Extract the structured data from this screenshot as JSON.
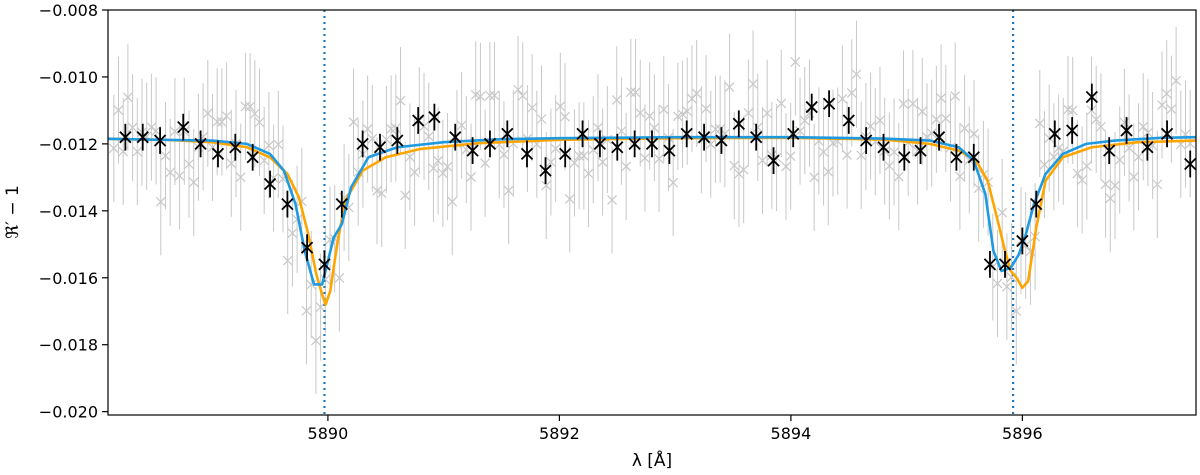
{
  "chart_data": {
    "type": "scatter",
    "title": "",
    "xlabel": "λ [Å]",
    "ylabel": "ℜ′ − 1",
    "xlim": [
      5888.1,
      5897.5
    ],
    "ylim": [
      -0.0201,
      -0.008
    ],
    "xticks": [
      5890,
      5892,
      5894,
      5896
    ],
    "yticks": [
      -0.02,
      -0.018,
      -0.016,
      -0.014,
      -0.012,
      -0.01,
      -0.008
    ],
    "ytick_labels": [
      "−0.020",
      "−0.018",
      "−0.016",
      "−0.014",
      "−0.012",
      "−0.010",
      "−0.008"
    ],
    "grid": false,
    "vlines": [
      5889.97,
      5895.92
    ],
    "colors": {
      "binned": "#000000",
      "raw": "#c8c8c8",
      "model_orange": "#ffa500",
      "model_blue": "#1f9ae0",
      "vline": "#1f77b4"
    },
    "binned_points": {
      "x": [
        5888.25,
        5888.4,
        5888.55,
        5888.75,
        5888.9,
        5889.05,
        5889.2,
        5889.35,
        5889.5,
        5889.65,
        5889.82,
        5889.97,
        5890.12,
        5890.3,
        5890.45,
        5890.6,
        5890.78,
        5890.92,
        5891.1,
        5891.25,
        5891.4,
        5891.55,
        5891.72,
        5891.88,
        5892.05,
        5892.2,
        5892.35,
        5892.5,
        5892.65,
        5892.8,
        5892.95,
        5893.1,
        5893.25,
        5893.4,
        5893.55,
        5893.7,
        5893.85,
        5894.02,
        5894.18,
        5894.33,
        5894.5,
        5894.65,
        5894.8,
        5894.98,
        5895.12,
        5895.28,
        5895.43,
        5895.58,
        5895.72,
        5895.85,
        5896.0,
        5896.12,
        5896.28,
        5896.43,
        5896.6,
        5896.75,
        5896.9,
        5897.08,
        5897.25,
        5897.45
      ],
      "y": [
        -0.0118,
        -0.0118,
        -0.0119,
        -0.0115,
        -0.012,
        -0.0123,
        -0.0121,
        -0.0124,
        -0.0132,
        -0.0138,
        -0.0151,
        -0.0156,
        -0.0138,
        -0.012,
        -0.0121,
        -0.0119,
        -0.0113,
        -0.0112,
        -0.0118,
        -0.0122,
        -0.012,
        -0.0117,
        -0.0123,
        -0.0128,
        -0.0123,
        -0.0117,
        -0.012,
        -0.0121,
        -0.012,
        -0.012,
        -0.0122,
        -0.0117,
        -0.0118,
        -0.0119,
        -0.0114,
        -0.0118,
        -0.0125,
        -0.0117,
        -0.0109,
        -0.0108,
        -0.0113,
        -0.0119,
        -0.0121,
        -0.0124,
        -0.0122,
        -0.0118,
        -0.0124,
        -0.0124,
        -0.0156,
        -0.0156,
        -0.0149,
        -0.0138,
        -0.0117,
        -0.0116,
        -0.0106,
        -0.0122,
        -0.0116,
        -0.0121,
        -0.0117,
        -0.0126
      ],
      "err": [
        0.0004,
        0.0004,
        0.0004,
        0.0004,
        0.0004,
        0.0004,
        0.0004,
        0.0004,
        0.0004,
        0.0004,
        0.0004,
        0.0004,
        0.0004,
        0.0004,
        0.0004,
        0.0004,
        0.0004,
        0.0004,
        0.0004,
        0.0004,
        0.0004,
        0.0004,
        0.0004,
        0.0004,
        0.0004,
        0.0004,
        0.0004,
        0.0004,
        0.0004,
        0.0004,
        0.0004,
        0.0004,
        0.0004,
        0.0004,
        0.0004,
        0.0004,
        0.0004,
        0.0004,
        0.0004,
        0.0004,
        0.0004,
        0.0004,
        0.0004,
        0.0004,
        0.0004,
        0.0004,
        0.0004,
        0.0004,
        0.0004,
        0.0004,
        0.0004,
        0.0004,
        0.0004,
        0.0004,
        0.0004,
        0.0004,
        0.0004,
        0.0004,
        0.0004,
        0.0004
      ]
    },
    "raw_scatter": {
      "x_start": 5888.15,
      "x_end": 5897.45,
      "count": 230,
      "err": 0.0016,
      "noise": 0.0009
    },
    "series": [
      {
        "x": [
          5888.1,
          5888.6,
          5889.0,
          5889.3,
          5889.5,
          5889.65,
          5889.75,
          5889.83,
          5889.9,
          5889.95,
          5889.98,
          5890.02,
          5890.08,
          5890.15,
          5890.3,
          5890.5,
          5890.8,
          5891.3,
          5892.0,
          5893.0,
          5894.0,
          5894.8,
          5895.2,
          5895.45,
          5895.6,
          5895.7,
          5895.78,
          5895.85,
          5895.9,
          5895.95,
          5896.0,
          5896.05,
          5896.12,
          5896.2,
          5896.35,
          5896.6,
          5897.0,
          5897.5
        ],
        "y": [
          -0.01185,
          -0.01188,
          -0.01195,
          -0.0121,
          -0.0124,
          -0.0129,
          -0.0136,
          -0.0147,
          -0.0159,
          -0.0165,
          -0.0168,
          -0.0164,
          -0.015,
          -0.0137,
          -0.0128,
          -0.0124,
          -0.01215,
          -0.01198,
          -0.01188,
          -0.01183,
          -0.01182,
          -0.01187,
          -0.012,
          -0.0122,
          -0.0125,
          -0.0131,
          -0.0142,
          -0.0152,
          -0.0158,
          -0.016,
          -0.0163,
          -0.0161,
          -0.0145,
          -0.0131,
          -0.0124,
          -0.0121,
          -0.01195,
          -0.0119
        ]
      },
      {
        "x": [
          5888.1,
          5888.6,
          5889.0,
          5889.3,
          5889.5,
          5889.62,
          5889.72,
          5889.8,
          5889.88,
          5889.95,
          5890.0,
          5890.05,
          5890.12,
          5890.2,
          5890.35,
          5890.6,
          5891.0,
          5891.5,
          5892.0,
          5893.0,
          5894.0,
          5894.8,
          5895.2,
          5895.45,
          5895.58,
          5895.68,
          5895.75,
          5895.82,
          5895.9,
          5895.97,
          5896.03,
          5896.1,
          5896.2,
          5896.35,
          5896.55,
          5896.8,
          5897.2,
          5897.5
        ],
        "y": [
          -0.01185,
          -0.01188,
          -0.0119,
          -0.012,
          -0.0123,
          -0.0128,
          -0.0138,
          -0.0152,
          -0.0162,
          -0.0162,
          -0.0155,
          -0.0148,
          -0.0144,
          -0.0133,
          -0.0124,
          -0.0121,
          -0.01195,
          -0.01186,
          -0.01183,
          -0.0118,
          -0.0118,
          -0.01184,
          -0.0119,
          -0.0121,
          -0.0125,
          -0.0135,
          -0.0152,
          -0.0158,
          -0.0157,
          -0.0153,
          -0.0147,
          -0.0138,
          -0.0129,
          -0.0123,
          -0.012,
          -0.0119,
          -0.01182,
          -0.0118
        ]
      }
    ]
  }
}
